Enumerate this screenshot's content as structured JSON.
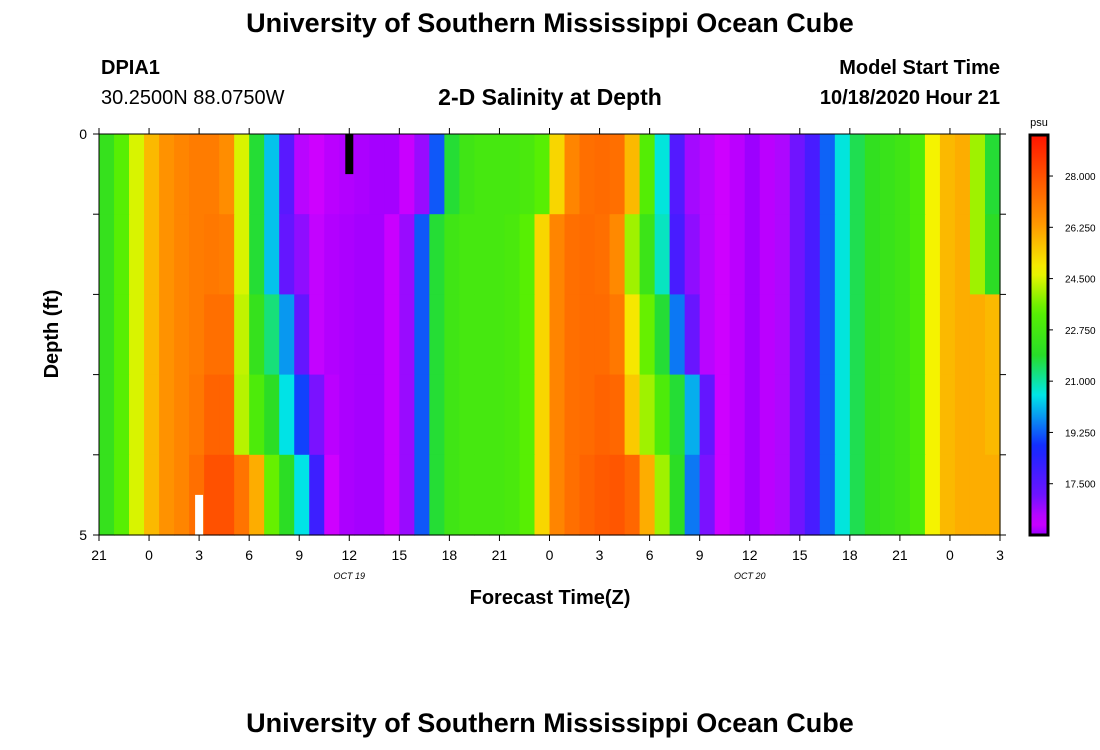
{
  "header": {
    "title": "University of Southern Mississippi Ocean Cube",
    "station": "DPIA1",
    "coordinates": "30.2500N 88.0750W",
    "chart_title": "2-D Salinity at Depth",
    "model_start_label": "Model Start Time",
    "model_start_value": "10/18/2020 Hour 21"
  },
  "footer": {
    "title": "University of Southern Mississippi Ocean Cube"
  },
  "chart_data": {
    "type": "heatmap",
    "title": "2-D Salinity at Depth",
    "xlabel": "Forecast Time(Z)",
    "ylabel": "Depth (ft)",
    "x_tick_labels": [
      "21",
      "0",
      "3",
      "6",
      "9",
      "12",
      "15",
      "18",
      "21",
      "0",
      "3",
      "6",
      "9",
      "12",
      "15",
      "18",
      "21",
      "0",
      "3"
    ],
    "x_date_labels": [
      {
        "label": "OCT 19",
        "tick_index": 5
      },
      {
        "label": "OCT 20",
        "tick_index": 13
      }
    ],
    "y_tick_labels": [
      {
        "label": "0",
        "depth": 0
      },
      {
        "label": "5",
        "depth": 5
      }
    ],
    "ylim": [
      0,
      5
    ],
    "hours_total": 54,
    "colorbar": {
      "unit": "psu",
      "min": 15.75,
      "max": 29.4,
      "tick_labels": [
        "28.000",
        "26.250",
        "24.500",
        "22.750",
        "21.000",
        "19.250",
        "17.500"
      ],
      "tick_values": [
        28.0,
        26.25,
        24.5,
        22.75,
        21.0,
        19.25,
        17.5
      ]
    },
    "depth_layers": [
      {
        "depth": 0,
        "values": [
          22.3,
          23.3,
          24.5,
          25.8,
          26.5,
          26.8,
          27.0,
          27.0,
          26.6,
          24.5,
          21.8,
          20.2,
          17.5,
          16.4,
          16.2,
          16.0,
          15.95,
          15.9,
          15.85,
          15.85,
          16.1,
          16.7,
          19.2,
          21.8,
          22.6,
          22.8,
          22.8,
          22.8,
          22.9,
          23.3,
          25.3,
          26.8,
          27.3,
          27.4,
          27.3,
          25.8,
          23.2,
          20.6,
          17.6,
          16.6,
          16.4,
          16.2,
          16.0,
          15.8,
          16.0,
          16.5,
          17.1,
          17.8,
          19.3,
          20.6,
          21.6,
          22.2,
          22.4,
          22.6,
          23.0,
          24.8,
          25.8,
          26.0,
          24.0,
          21.8
        ]
      },
      {
        "depth": 1,
        "values": [
          22.3,
          23.3,
          24.5,
          25.8,
          26.5,
          26.8,
          27.0,
          27.1,
          27.0,
          24.5,
          21.8,
          20.2,
          17.3,
          16.8,
          16.3,
          15.95,
          15.9,
          15.85,
          15.85,
          16.1,
          16.7,
          19.2,
          21.8,
          22.6,
          22.8,
          22.8,
          22.8,
          22.9,
          23.3,
          25.3,
          26.8,
          27.3,
          27.4,
          27.3,
          26.7,
          24.0,
          22.5,
          20.8,
          17.8,
          16.8,
          16.4,
          16.2,
          16.0,
          15.8,
          16.0,
          16.5,
          17.1,
          17.8,
          19.3,
          20.6,
          21.6,
          22.2,
          22.4,
          22.6,
          23.0,
          24.8,
          25.8,
          26.0,
          24.0,
          22.0
        ]
      },
      {
        "depth": 2,
        "values": [
          22.3,
          23.3,
          24.5,
          25.8,
          26.5,
          26.8,
          27.0,
          27.3,
          27.3,
          24.3,
          22.3,
          21.3,
          19.8,
          17.3,
          16.3,
          15.95,
          15.9,
          15.85,
          15.85,
          16.1,
          16.7,
          19.2,
          21.8,
          22.6,
          22.8,
          22.8,
          22.8,
          22.9,
          23.3,
          25.3,
          26.8,
          27.3,
          27.4,
          27.4,
          27.1,
          25.0,
          23.5,
          21.8,
          19.5,
          17.2,
          16.4,
          16.2,
          16.0,
          15.8,
          16.0,
          16.5,
          17.1,
          17.8,
          19.3,
          20.6,
          21.6,
          22.2,
          22.4,
          22.6,
          23.0,
          24.8,
          25.8,
          26.0,
          26.0,
          25.8
        ]
      },
      {
        "depth": 3,
        "values": [
          22.3,
          23.3,
          24.5,
          25.8,
          26.5,
          26.8,
          27.1,
          27.6,
          27.6,
          24.2,
          23.0,
          22.0,
          20.5,
          19.0,
          17.0,
          16.0,
          15.9,
          15.85,
          15.85,
          16.1,
          16.7,
          19.2,
          21.8,
          22.6,
          22.8,
          22.8,
          22.8,
          22.9,
          23.3,
          25.3,
          26.8,
          27.3,
          27.4,
          27.6,
          27.5,
          25.5,
          24.0,
          23.0,
          21.8,
          20.0,
          17.3,
          16.2,
          16.0,
          15.8,
          16.0,
          16.5,
          17.1,
          17.8,
          19.3,
          20.6,
          21.6,
          22.2,
          22.4,
          22.6,
          23.0,
          24.8,
          25.8,
          26.0,
          26.0,
          25.8
        ]
      },
      {
        "depth": 4,
        "values": [
          22.3,
          23.3,
          24.5,
          25.8,
          26.5,
          26.8,
          27.3,
          28.0,
          28.0,
          27.2,
          26.0,
          23.5,
          22.0,
          20.5,
          18.0,
          16.2,
          15.9,
          15.85,
          15.85,
          16.1,
          16.7,
          19.2,
          21.8,
          22.6,
          22.8,
          22.8,
          22.8,
          22.9,
          23.3,
          25.3,
          26.8,
          27.3,
          27.6,
          27.8,
          27.9,
          27.5,
          26.0,
          24.0,
          22.0,
          19.5,
          17.0,
          16.2,
          16.0,
          15.8,
          16.0,
          16.5,
          17.1,
          17.8,
          19.3,
          20.6,
          21.6,
          22.2,
          22.4,
          22.6,
          23.0,
          24.8,
          25.8,
          26.0,
          26.0,
          26.0
        ]
      }
    ],
    "markers": [
      {
        "color": "#000000",
        "hour": 15,
        "depth_from": 0,
        "depth_to": 0.5
      },
      {
        "color": "#ffffff",
        "hour": 6,
        "depth_from": 4.5,
        "depth_to": 5
      }
    ]
  }
}
